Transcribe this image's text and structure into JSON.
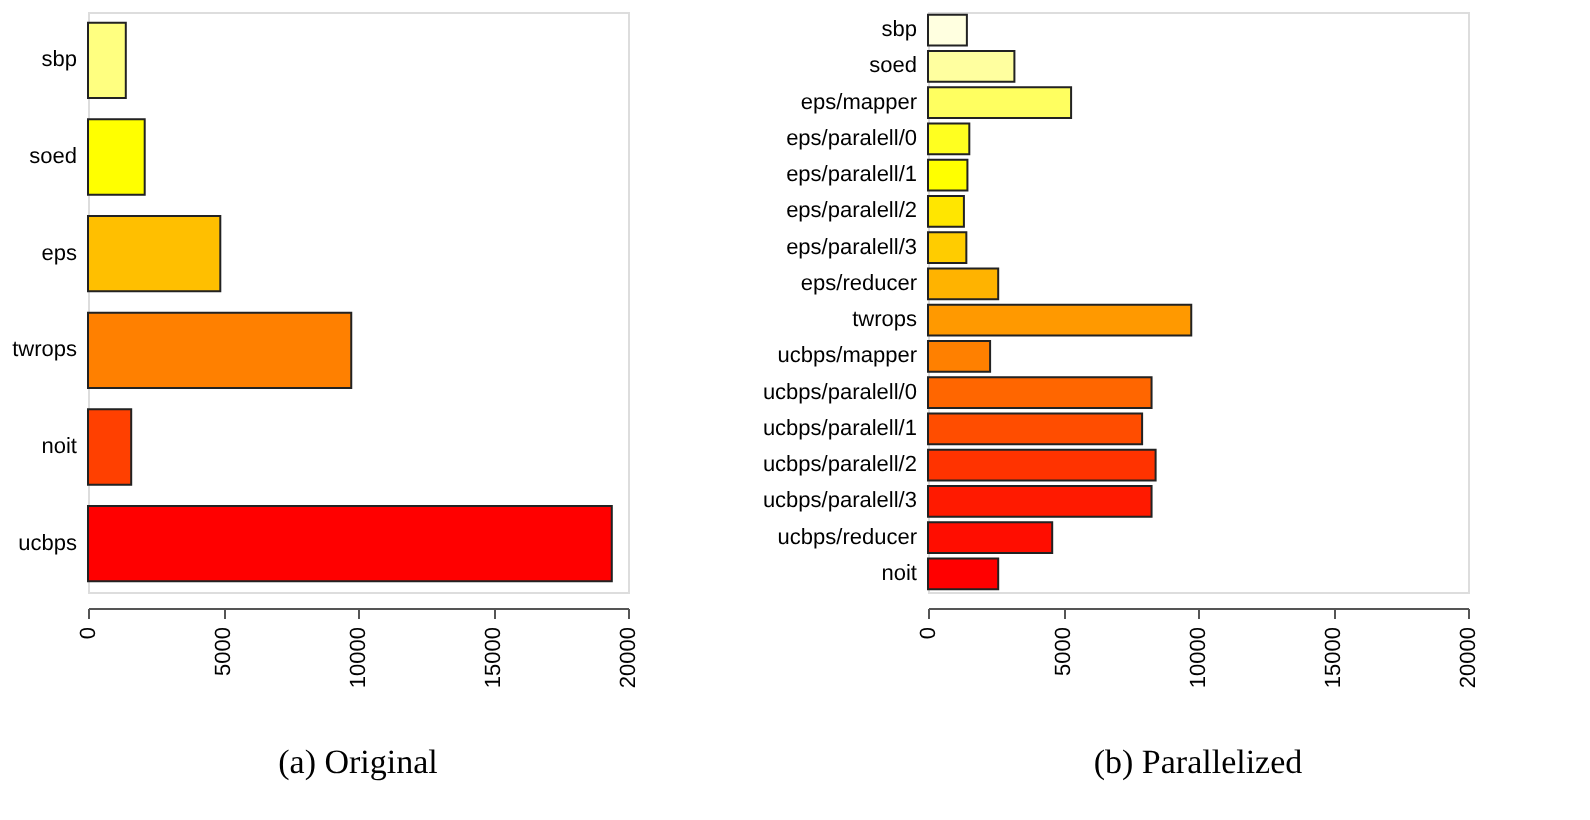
{
  "chart_data": [
    {
      "type": "bar",
      "orientation": "horizontal",
      "title": "(a) Original",
      "categories": [
        "sbp",
        "soed",
        "eps",
        "twrops",
        "noit",
        "ucbps"
      ],
      "values": [
        1400,
        2100,
        4900,
        9750,
        1600,
        19400
      ],
      "colors": [
        "#ffff80",
        "#ffff00",
        "#ffbf00",
        "#ff8000",
        "#ff4000",
        "#ff0000"
      ],
      "xlim": [
        0,
        20000
      ],
      "xticks": [
        0,
        5000,
        10000,
        15000,
        20000
      ],
      "grid": false
    },
    {
      "type": "bar",
      "orientation": "horizontal",
      "title": "(b) Parallelized",
      "categories": [
        "sbp",
        "soed",
        "eps/mapper",
        "eps/paralell/0",
        "eps/paralell/1",
        "eps/paralell/2",
        "eps/paralell/3",
        "eps/reducer",
        "twrops",
        "ucbps/mapper",
        "ucbps/paralell/0",
        "ucbps/paralell/1",
        "ucbps/paralell/2",
        "ucbps/paralell/3",
        "ucbps/reducer",
        "noit"
      ],
      "values": [
        1440,
        3200,
        5300,
        1530,
        1460,
        1330,
        1420,
        2600,
        9750,
        2300,
        8280,
        7930,
        8430,
        8280,
        4600,
        2600
      ],
      "colors": [
        "#ffffe0",
        "#ffff9f",
        "#ffff60",
        "#ffff20",
        "#ffff00",
        "#ffe600",
        "#ffcc00",
        "#ffb300",
        "#ff9900",
        "#ff8000",
        "#ff6600",
        "#ff4d00",
        "#ff3300",
        "#ff1a00",
        "#ff0d00",
        "#ff0000"
      ],
      "xlim": [
        0,
        20000
      ],
      "xticks": [
        0,
        5000,
        10000,
        15000,
        20000
      ],
      "grid": false
    }
  ]
}
